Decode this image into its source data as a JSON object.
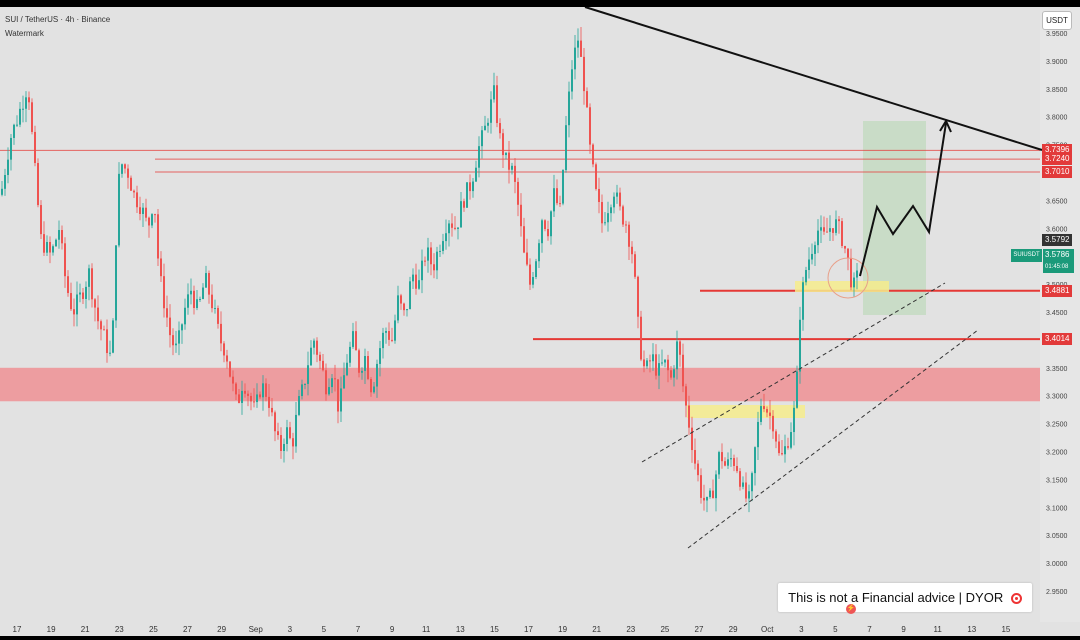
{
  "header": {
    "title": "SUI / TetherUS · 4h · Binance",
    "watermark": "Watermark"
  },
  "currency_button": "USDT",
  "price_tags": [
    {
      "label": "3.7396",
      "price": 3.7396,
      "style": "red"
    },
    {
      "label": "3.7240",
      "price": 3.724,
      "style": "red"
    },
    {
      "label": "3.7010",
      "price": 3.701,
      "style": "red"
    },
    {
      "label": "3.5792",
      "price": 3.5792,
      "style": "dark"
    },
    {
      "label": "3.4881",
      "price": 3.4881,
      "style": "red"
    },
    {
      "label": "3.4014",
      "price": 3.4014,
      "style": "red"
    }
  ],
  "live": {
    "symbol": "SUIUSDT",
    "price": "3.5786",
    "countdown": "01:45:08"
  },
  "disclaimer": "This is not a Financial advice | DYOR",
  "colors": {
    "up": "#26a69a",
    "down": "#ef5350",
    "support_zone": "#f08c90",
    "highlight": "#f6ec8c",
    "target_zone": "#c9dcc6",
    "level_line": "#e53935"
  },
  "icons": [
    "target-icon",
    "lightning-icon"
  ],
  "chart_data": {
    "type": "candlestick",
    "symbol": "SUIUSDT",
    "interval": "4h",
    "exchange": "Binance",
    "ylim": [
      2.9,
      3.97
    ],
    "y_ticks": [
      "2.9500",
      "3.0000",
      "3.0500",
      "3.1000",
      "3.1500",
      "3.2000",
      "3.2500",
      "3.3000",
      "3.3500",
      "3.4000",
      "3.4500",
      "3.5000",
      "3.5500",
      "3.6000",
      "3.6500",
      "3.7000",
      "3.7500",
      "3.8000",
      "3.8500",
      "3.9000",
      "3.9500"
    ],
    "x_ticks": [
      "17",
      "19",
      "21",
      "23",
      "25",
      "27",
      "29",
      "Sep",
      "3",
      "5",
      "7",
      "9",
      "11",
      "13",
      "15",
      "17",
      "19",
      "21",
      "23",
      "25",
      "27",
      "29",
      "Oct",
      "3",
      "5",
      "7",
      "9",
      "11",
      "13",
      "15"
    ],
    "horizontal_levels": [
      3.7396,
      3.724,
      3.701,
      3.4881,
      3.4014
    ],
    "support_zone": [
      3.29,
      3.35
    ],
    "price_path": [
      [
        0,
        3.66
      ],
      [
        9,
        3.76
      ],
      [
        17,
        3.8
      ],
      [
        27,
        3.86
      ],
      [
        33,
        3.72
      ],
      [
        40,
        3.58
      ],
      [
        50,
        3.55
      ],
      [
        58,
        3.6
      ],
      [
        65,
        3.5
      ],
      [
        72,
        3.45
      ],
      [
        80,
        3.48
      ],
      [
        88,
        3.52
      ],
      [
        96,
        3.44
      ],
      [
        104,
        3.4
      ],
      [
        111,
        3.36
      ],
      [
        114,
        3.55
      ],
      [
        119,
        3.72
      ],
      [
        127,
        3.7
      ],
      [
        133,
        3.66
      ],
      [
        140,
        3.64
      ],
      [
        147,
        3.6
      ],
      [
        153,
        3.66
      ],
      [
        158,
        3.52
      ],
      [
        163,
        3.47
      ],
      [
        170,
        3.4
      ],
      [
        176,
        3.38
      ],
      [
        183,
        3.45
      ],
      [
        190,
        3.49
      ],
      [
        197,
        3.45
      ],
      [
        204,
        3.51
      ],
      [
        212,
        3.46
      ],
      [
        219,
        3.4
      ],
      [
        225,
        3.38
      ],
      [
        230,
        3.33
      ],
      [
        236,
        3.28
      ],
      [
        242,
        3.33
      ],
      [
        248,
        3.3
      ],
      [
        254,
        3.27
      ],
      [
        260,
        3.32
      ],
      [
        267,
        3.3
      ],
      [
        273,
        3.24
      ],
      [
        279,
        3.2
      ],
      [
        285,
        3.24
      ],
      [
        291,
        3.21
      ],
      [
        297,
        3.28
      ],
      [
        303,
        3.32
      ],
      [
        308,
        3.37
      ],
      [
        313,
        3.4
      ],
      [
        319,
        3.36
      ],
      [
        325,
        3.32
      ],
      [
        332,
        3.35
      ],
      [
        338,
        3.27
      ],
      [
        345,
        3.36
      ],
      [
        352,
        3.4
      ],
      [
        358,
        3.35
      ],
      [
        364,
        3.37
      ],
      [
        371,
        3.31
      ],
      [
        378,
        3.38
      ],
      [
        384,
        3.42
      ],
      [
        391,
        3.4
      ],
      [
        397,
        3.47
      ],
      [
        404,
        3.44
      ],
      [
        411,
        3.52
      ],
      [
        418,
        3.5
      ],
      [
        425,
        3.56
      ],
      [
        432,
        3.53
      ],
      [
        440,
        3.58
      ],
      [
        447,
        3.62
      ],
      [
        455,
        3.6
      ],
      [
        462,
        3.65
      ],
      [
        470,
        3.68
      ],
      [
        477,
        3.74
      ],
      [
        483,
        3.77
      ],
      [
        488,
        3.81
      ],
      [
        493,
        3.84
      ],
      [
        499,
        3.76
      ],
      [
        505,
        3.72
      ],
      [
        512,
        3.7
      ],
      [
        517,
        3.64
      ],
      [
        523,
        3.55
      ],
      [
        529,
        3.5
      ],
      [
        535,
        3.55
      ],
      [
        541,
        3.62
      ],
      [
        547,
        3.6
      ],
      [
        553,
        3.66
      ],
      [
        559,
        3.63
      ],
      [
        565,
        3.78
      ],
      [
        571,
        3.89
      ],
      [
        577,
        3.94
      ],
      [
        583,
        3.86
      ],
      [
        589,
        3.74
      ],
      [
        595,
        3.66
      ],
      [
        601,
        3.61
      ],
      [
        607,
        3.64
      ],
      [
        613,
        3.67
      ],
      [
        619,
        3.63
      ],
      [
        625,
        3.61
      ],
      [
        632,
        3.55
      ],
      [
        638,
        3.4
      ],
      [
        644,
        3.34
      ],
      [
        651,
        3.37
      ],
      [
        657,
        3.34
      ],
      [
        663,
        3.36
      ],
      [
        670,
        3.33
      ],
      [
        677,
        3.4
      ],
      [
        683,
        3.3
      ],
      [
        689,
        3.24
      ],
      [
        695,
        3.17
      ],
      [
        701,
        3.12
      ],
      [
        707,
        3.1
      ],
      [
        713,
        3.14
      ],
      [
        719,
        3.2
      ],
      [
        725,
        3.17
      ],
      [
        731,
        3.19
      ],
      [
        737,
        3.17
      ],
      [
        743,
        3.12
      ],
      [
        749,
        3.11
      ],
      [
        755,
        3.22
      ],
      [
        761,
        3.3
      ],
      [
        767,
        3.27
      ],
      [
        773,
        3.25
      ],
      [
        779,
        3.18
      ],
      [
        785,
        3.21
      ],
      [
        791,
        3.25
      ],
      [
        795,
        3.29
      ],
      [
        799,
        3.45
      ],
      [
        804,
        3.52
      ],
      [
        810,
        3.56
      ],
      [
        816,
        3.6
      ],
      [
        822,
        3.58
      ],
      [
        828,
        3.6
      ],
      [
        834,
        3.61
      ],
      [
        840,
        3.59
      ],
      [
        846,
        3.55
      ],
      [
        852,
        3.49
      ],
      [
        858,
        3.52
      ]
    ],
    "projection": "bullish: bounce from 3.4881 toward the 3.7396 resistance zone"
  }
}
